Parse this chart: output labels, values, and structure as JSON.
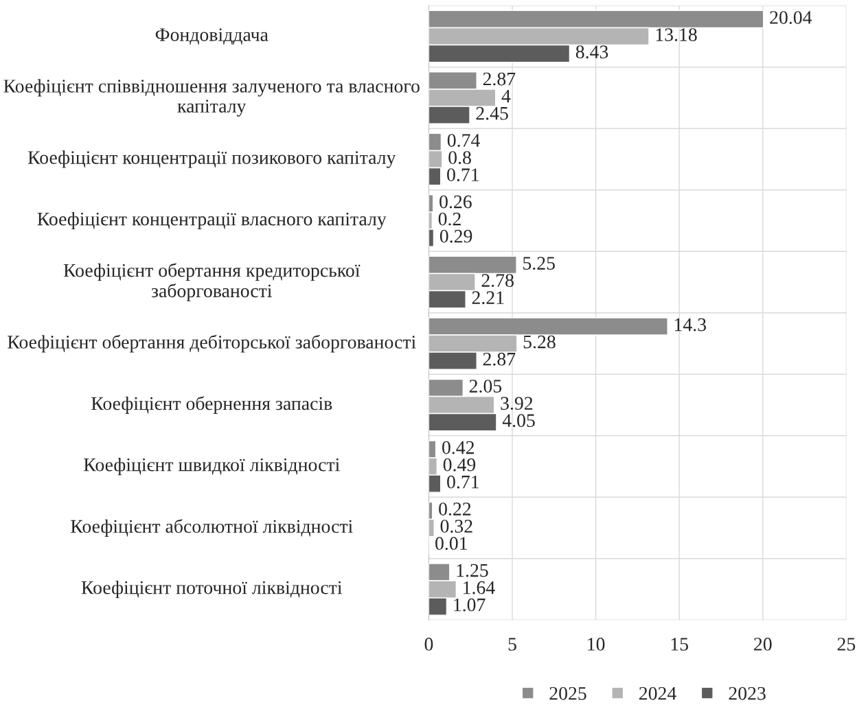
{
  "chart_data": {
    "type": "bar",
    "orientation": "horizontal",
    "categories": [
      "Фондовіддача",
      "Коефіцієнт співвідношення залученого та власного капіталу",
      "Коефіцієнт концентрації позикового капіталу",
      "Коефіцієнт концентрації власного капіталу",
      "Коефіцієнт обертання кредиторської заборгованості",
      "Коефіцієнт обертання дебіторської заборгованості",
      "Коефіцієнт обернення запасів",
      "Коефіцієнт швидкої ліквідності",
      "Коефіцієнт абсолютної ліквідності",
      "Коефіцієнт поточної ліквідності"
    ],
    "series": [
      {
        "name": "2025",
        "color": "#8c8c8c",
        "values": [
          20.04,
          2.87,
          0.74,
          0.26,
          5.25,
          14.3,
          2.05,
          0.42,
          0.22,
          1.25
        ]
      },
      {
        "name": "2024",
        "color": "#b4b4b4",
        "values": [
          13.18,
          4,
          0.8,
          0.2,
          2.78,
          5.28,
          3.92,
          0.49,
          0.32,
          1.64
        ]
      },
      {
        "name": "2023",
        "color": "#5c5c5c",
        "values": [
          8.43,
          2.45,
          0.71,
          0.29,
          2.21,
          2.87,
          4.05,
          0.71,
          0.01,
          1.07
        ]
      }
    ],
    "xlim": [
      0,
      25
    ],
    "xticks": [
      0,
      5,
      10,
      15,
      20,
      25
    ],
    "data_labels": true,
    "grid": true,
    "legend": "bottom"
  }
}
